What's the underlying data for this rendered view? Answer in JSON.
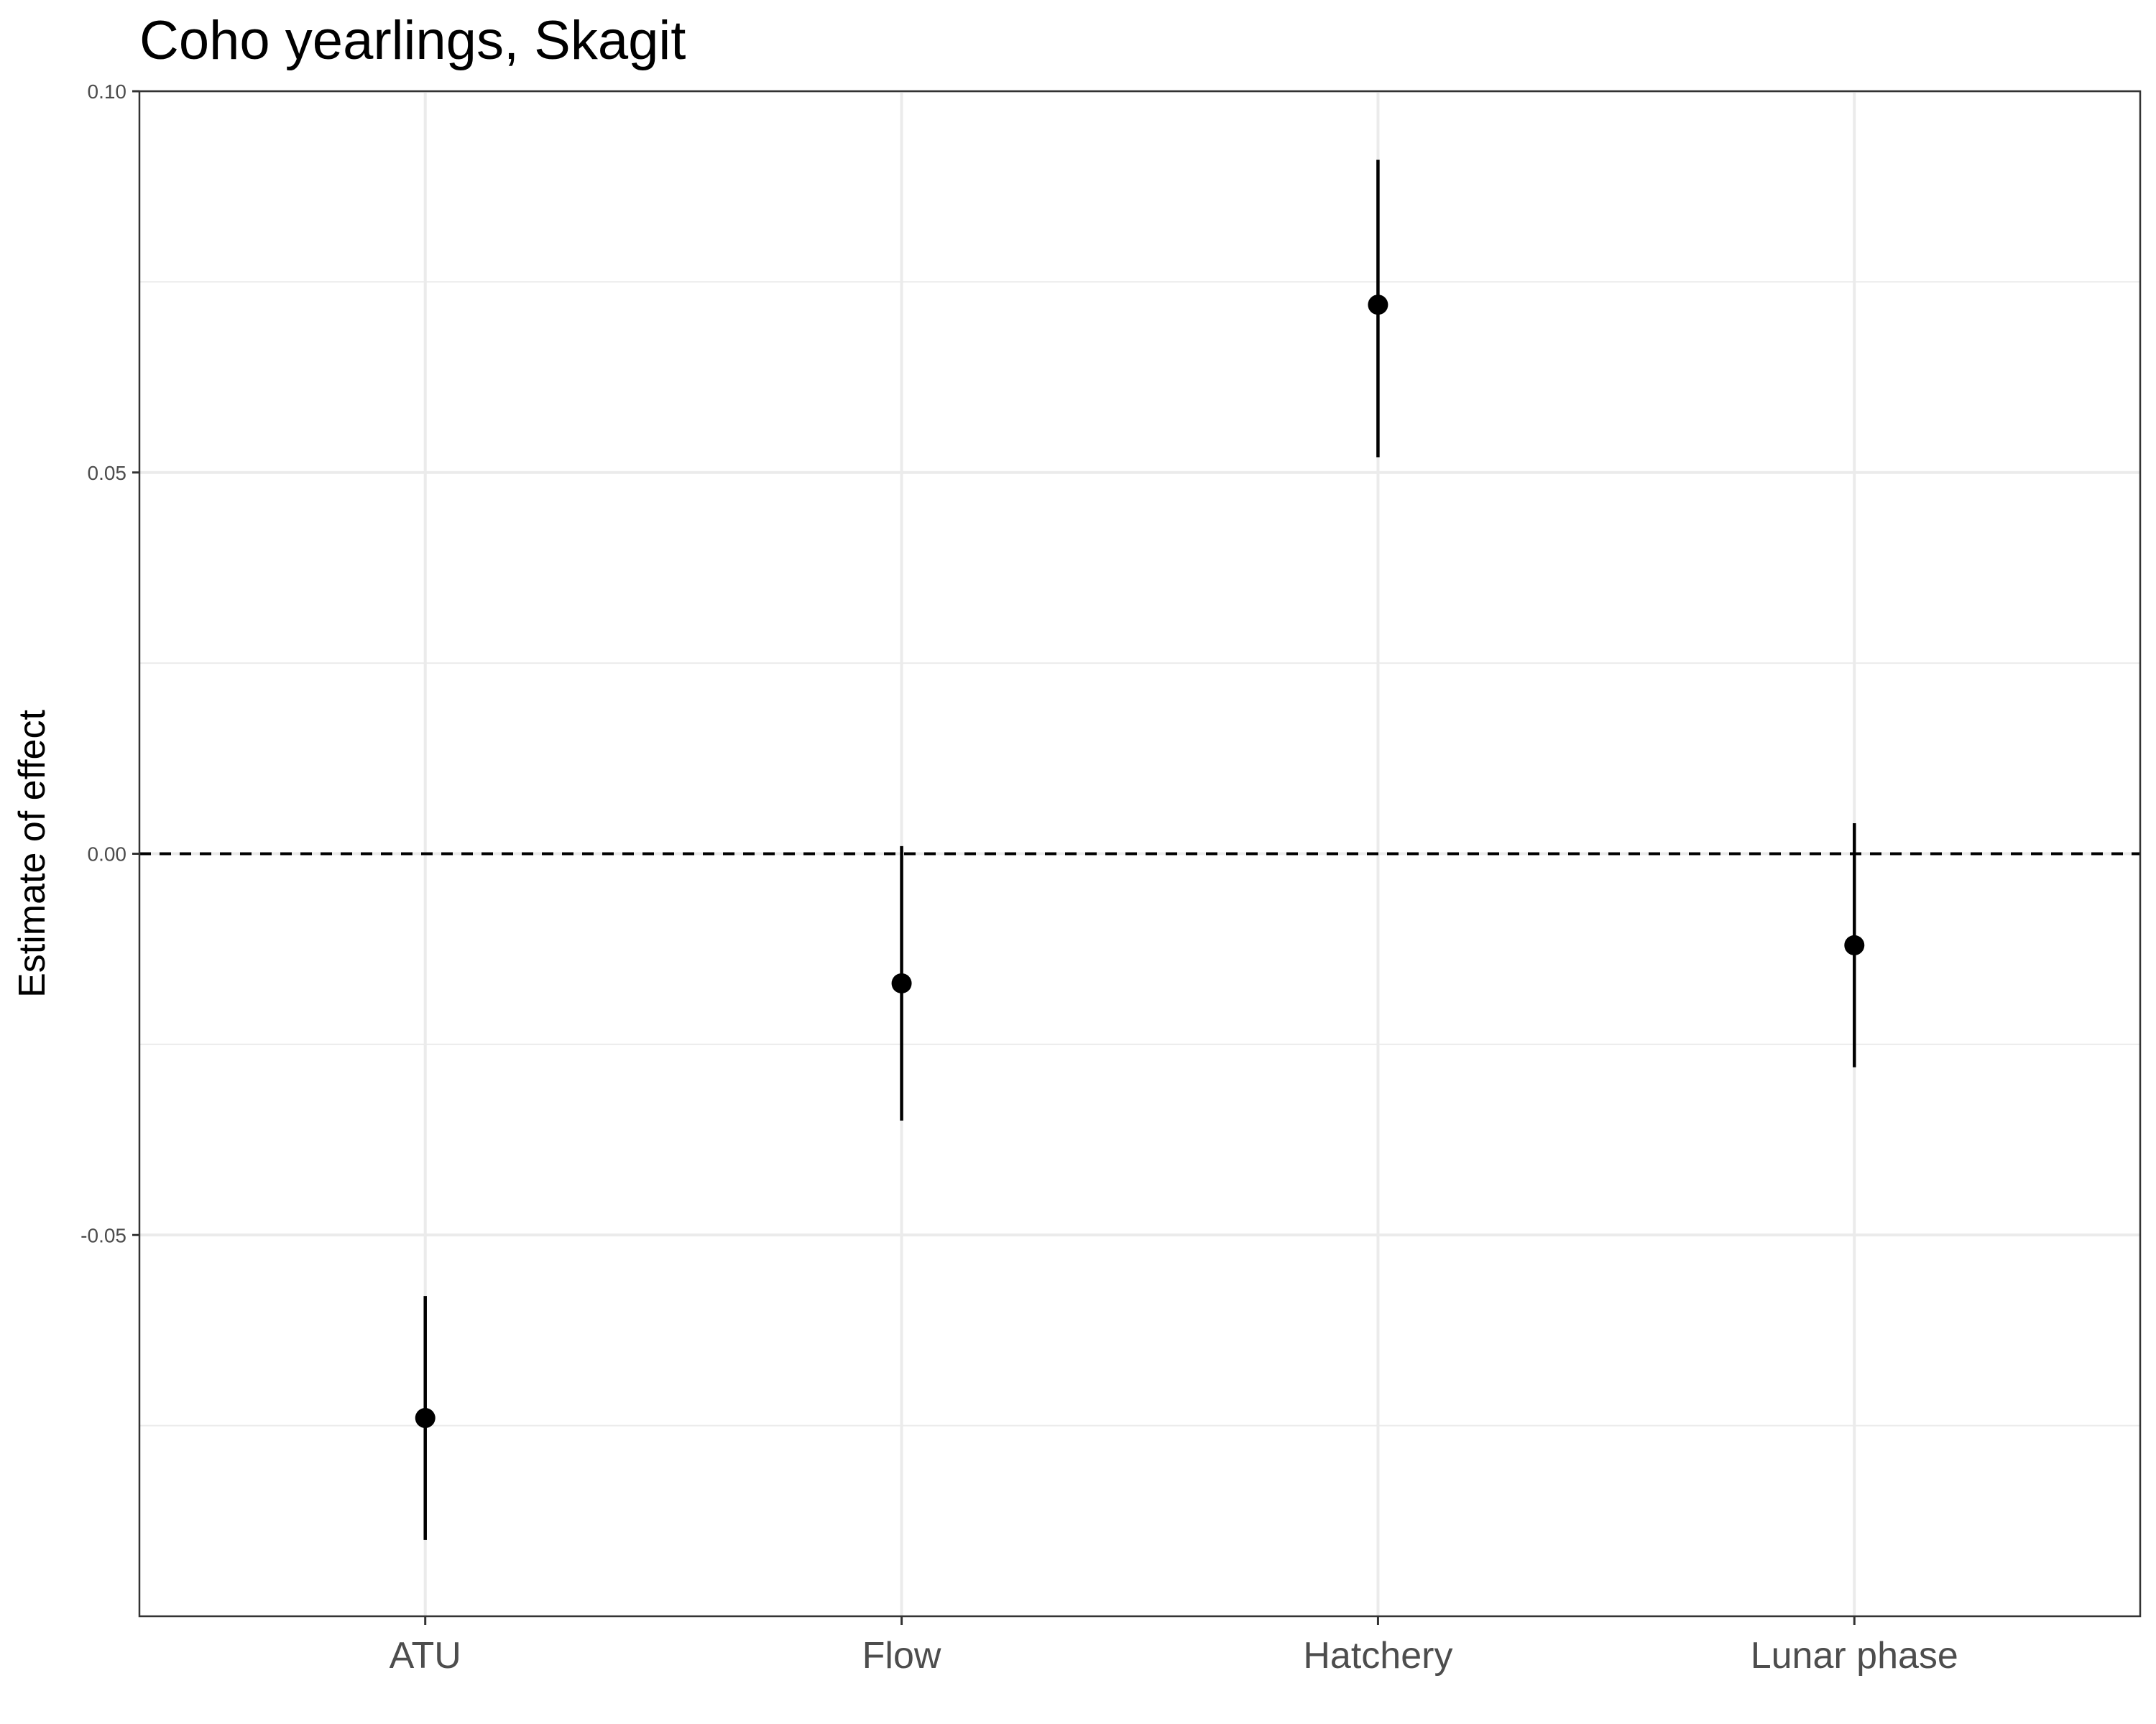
{
  "chart_data": {
    "type": "scatter",
    "title": "Coho yearlings, Skagit",
    "xlabel": "",
    "ylabel": "Estimate of effect",
    "categories": [
      "ATU",
      "Flow",
      "Hatchery",
      "Lunar phase"
    ],
    "estimates": [
      -0.074,
      -0.017,
      0.072,
      -0.012
    ],
    "lower": [
      -0.09,
      -0.035,
      0.052,
      -0.028
    ],
    "upper": [
      -0.058,
      0.001,
      0.091,
      0.004
    ],
    "ylim": [
      -0.1,
      0.1
    ],
    "yticks": [
      0.1,
      0.05,
      0.0,
      -0.05
    ],
    "ytick_labels": [
      "0.10",
      "0.05",
      "0.00",
      "-0.05"
    ],
    "reference_line": 0,
    "grid": true,
    "colors": {
      "points": "#000000",
      "grid": "#ebebeb",
      "panel_border": "#333333"
    }
  }
}
